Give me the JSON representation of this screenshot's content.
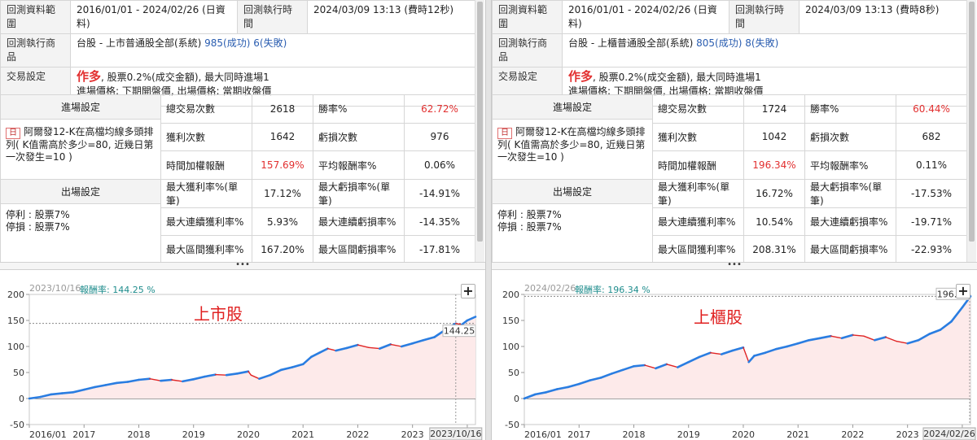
{
  "left": {
    "range_label": "回測資料範圍",
    "range_value": "2016/01/01 - 2024/02/26 (日資料)",
    "exec_time_label": "回測執行時間",
    "exec_time_value": "2024/03/09 13:13 (費時12秒)",
    "product_label": "回測執行商品",
    "product_value": "台股 - 上市普通股全部(系統)",
    "success_count": "985(成功)",
    "fail_count": "6(失敗)",
    "trade_label": "交易設定",
    "trade_mode": "作多",
    "trade_line1": ", 股票0.2%(成交金額), 最大同時進場1",
    "trade_line2": "進場價格: 下期開盤價, 出場價格: 當期收盤價",
    "entry_header": "進場設定",
    "day_badge": "日",
    "entry_text": "阿爾發12-K在高檔均線多頭排列( K值需高於多少=80, 近幾日第一次發生=10 )",
    "exit_header": "出場設定",
    "exit_line1": "停利 : 股票7%",
    "exit_line2": "停損 : 股票7%",
    "stats": [
      {
        "l1": "總交易次數",
        "v1": "2618",
        "l2": "勝率%",
        "v2": "62.72%",
        "v2red": true
      },
      {
        "l1": "獲利次數",
        "v1": "1642",
        "l2": "虧損次數",
        "v2": "976"
      },
      {
        "l1": "時間加權報酬",
        "v1": "157.69%",
        "v1red": true,
        "l2": "平均報酬率%",
        "v2": "0.06%"
      },
      {
        "l1": "最大獲利率%(單筆)",
        "v1": "17.12%",
        "l2": "最大虧損率%(單筆)",
        "v2": "-14.91%"
      },
      {
        "l1": "最大連續獲利率%",
        "v1": "5.93%",
        "l2": "最大連續虧損率%",
        "v2": "-14.35%"
      },
      {
        "l1": "最大區間獲利率%",
        "v1": "167.20%",
        "l2": "最大區間虧損率%",
        "v2": "-17.81%"
      }
    ],
    "chart_date": "2023/10/16",
    "chart_return": "報酬率: 144.25 %",
    "market_label": "上市股",
    "last_value_tag": "144.25",
    "cursor_date_tag": "2023/10/16"
  },
  "right": {
    "range_label": "回測資料範圍",
    "range_value": "2016/01/01 - 2024/02/26 (日資料)",
    "exec_time_label": "回測執行時間",
    "exec_time_value": "2024/03/09 13:13 (費時8秒)",
    "product_label": "回測執行商品",
    "product_value": "台股 - 上櫃普通股全部(系統)",
    "success_count": "805(成功)",
    "fail_count": "8(失敗)",
    "trade_label": "交易設定",
    "trade_mode": "作多",
    "trade_line1": ", 股票0.2%(成交金額), 最大同時進場1",
    "trade_line2": "進場價格: 下期開盤價, 出場價格: 當期收盤價",
    "entry_header": "進場設定",
    "day_badge": "日",
    "entry_text": "阿爾發12-K在高檔均線多頭排列( K值需高於多少=80, 近幾日第一次發生=10 )",
    "exit_header": "出場設定",
    "exit_line1": "停利 : 股票7%",
    "exit_line2": "停損 : 股票7%",
    "stats": [
      {
        "l1": "總交易次數",
        "v1": "1724",
        "l2": "勝率%",
        "v2": "60.44%",
        "v2red": true
      },
      {
        "l1": "獲利次數",
        "v1": "1042",
        "l2": "虧損次數",
        "v2": "682"
      },
      {
        "l1": "時間加權報酬",
        "v1": "196.34%",
        "v1red": true,
        "l2": "平均報酬率%",
        "v2": "0.11%"
      },
      {
        "l1": "最大獲利率%(單筆)",
        "v1": "16.72%",
        "l2": "最大虧損率%(單筆)",
        "v2": "-17.53%"
      },
      {
        "l1": "最大連續獲利率%",
        "v1": "10.54%",
        "l2": "最大連續虧損率%",
        "v2": "-19.71%"
      },
      {
        "l1": "最大區間獲利率%",
        "v1": "208.31%",
        "l2": "最大區間虧損率%",
        "v2": "-22.93%"
      }
    ],
    "chart_date": "2024/02/26",
    "chart_return": "報酬率: 196.34 %",
    "market_label": "上櫃股",
    "last_value_tag": "196.34",
    "cursor_date_tag": "2024/02/26"
  },
  "colors": {
    "up": "#2a7de1",
    "down": "#e02525",
    "fill": "#fdeaea",
    "red_text": "#e23030",
    "blue_text": "#2a5db0"
  },
  "chart_data": [
    {
      "type": "line",
      "ylabel": "",
      "ylim": [
        -50,
        200
      ],
      "yticks": [
        -50,
        0,
        50,
        100,
        150,
        200
      ],
      "x_tick_labels": [
        "2016/01",
        "2017",
        "2018",
        "2019",
        "2020",
        "2021",
        "2022",
        "2023",
        "2024"
      ],
      "x_tick_years": [
        2016.0,
        2017,
        2018,
        2019,
        2020,
        2021,
        2022,
        2023,
        2024
      ],
      "x_range": [
        2016.0,
        2024.15
      ],
      "reference_value": 144.25,
      "series": [
        {
          "x": [
            2016.0,
            2016.2,
            2016.4,
            2016.6,
            2016.8,
            2017.0,
            2017.2,
            2017.4,
            2017.6,
            2017.8,
            2018.0,
            2018.2,
            2018.4,
            2018.6,
            2018.8,
            2019.0,
            2019.2,
            2019.4,
            2019.6,
            2019.8,
            2020.0,
            2020.05,
            2020.2,
            2020.4,
            2020.6,
            2020.8,
            2021.0,
            2021.15,
            2021.3,
            2021.45,
            2021.6,
            2021.8,
            2022.0,
            2022.2,
            2022.4,
            2022.6,
            2022.8,
            2023.0,
            2023.2,
            2023.4,
            2023.6,
            2023.79,
            2023.9,
            2024.0,
            2024.15
          ],
          "y": [
            0,
            3,
            8,
            10,
            12,
            17,
            22,
            26,
            30,
            32,
            36,
            38,
            34,
            36,
            33,
            37,
            42,
            46,
            45,
            48,
            52,
            45,
            38,
            45,
            55,
            60,
            66,
            80,
            88,
            96,
            92,
            97,
            103,
            98,
            96,
            104,
            100,
            106,
            112,
            118,
            132,
            144.25,
            142,
            150,
            157
          ]
        }
      ]
    },
    {
      "type": "line",
      "ylabel": "",
      "ylim": [
        -50,
        200
      ],
      "yticks": [
        -50,
        0,
        50,
        100,
        150,
        200
      ],
      "x_tick_labels": [
        "2016/01",
        "2017",
        "2018",
        "2019",
        "2020",
        "2021",
        "2022",
        "2023",
        "2024"
      ],
      "x_tick_years": [
        2016.0,
        2017,
        2018,
        2019,
        2020,
        2021,
        2022,
        2023,
        2024
      ],
      "x_range": [
        2016.0,
        2024.15
      ],
      "reference_value": 196.34,
      "series": [
        {
          "x": [
            2016.0,
            2016.2,
            2016.4,
            2016.6,
            2016.8,
            2017.0,
            2017.2,
            2017.4,
            2017.6,
            2017.8,
            2018.0,
            2018.2,
            2018.4,
            2018.6,
            2018.8,
            2019.0,
            2019.2,
            2019.4,
            2019.6,
            2019.8,
            2020.0,
            2020.1,
            2020.2,
            2020.4,
            2020.6,
            2020.8,
            2021.0,
            2021.2,
            2021.4,
            2021.6,
            2021.8,
            2022.0,
            2022.2,
            2022.4,
            2022.6,
            2022.8,
            2023.0,
            2023.2,
            2023.4,
            2023.6,
            2023.8,
            2024.0,
            2024.15
          ],
          "y": [
            0,
            8,
            12,
            18,
            22,
            28,
            35,
            40,
            48,
            55,
            62,
            64,
            58,
            66,
            60,
            70,
            80,
            88,
            85,
            92,
            98,
            70,
            82,
            88,
            95,
            100,
            106,
            112,
            116,
            120,
            116,
            122,
            120,
            112,
            118,
            110,
            106,
            112,
            124,
            132,
            148,
            175,
            196.34
          ]
        }
      ]
    }
  ]
}
